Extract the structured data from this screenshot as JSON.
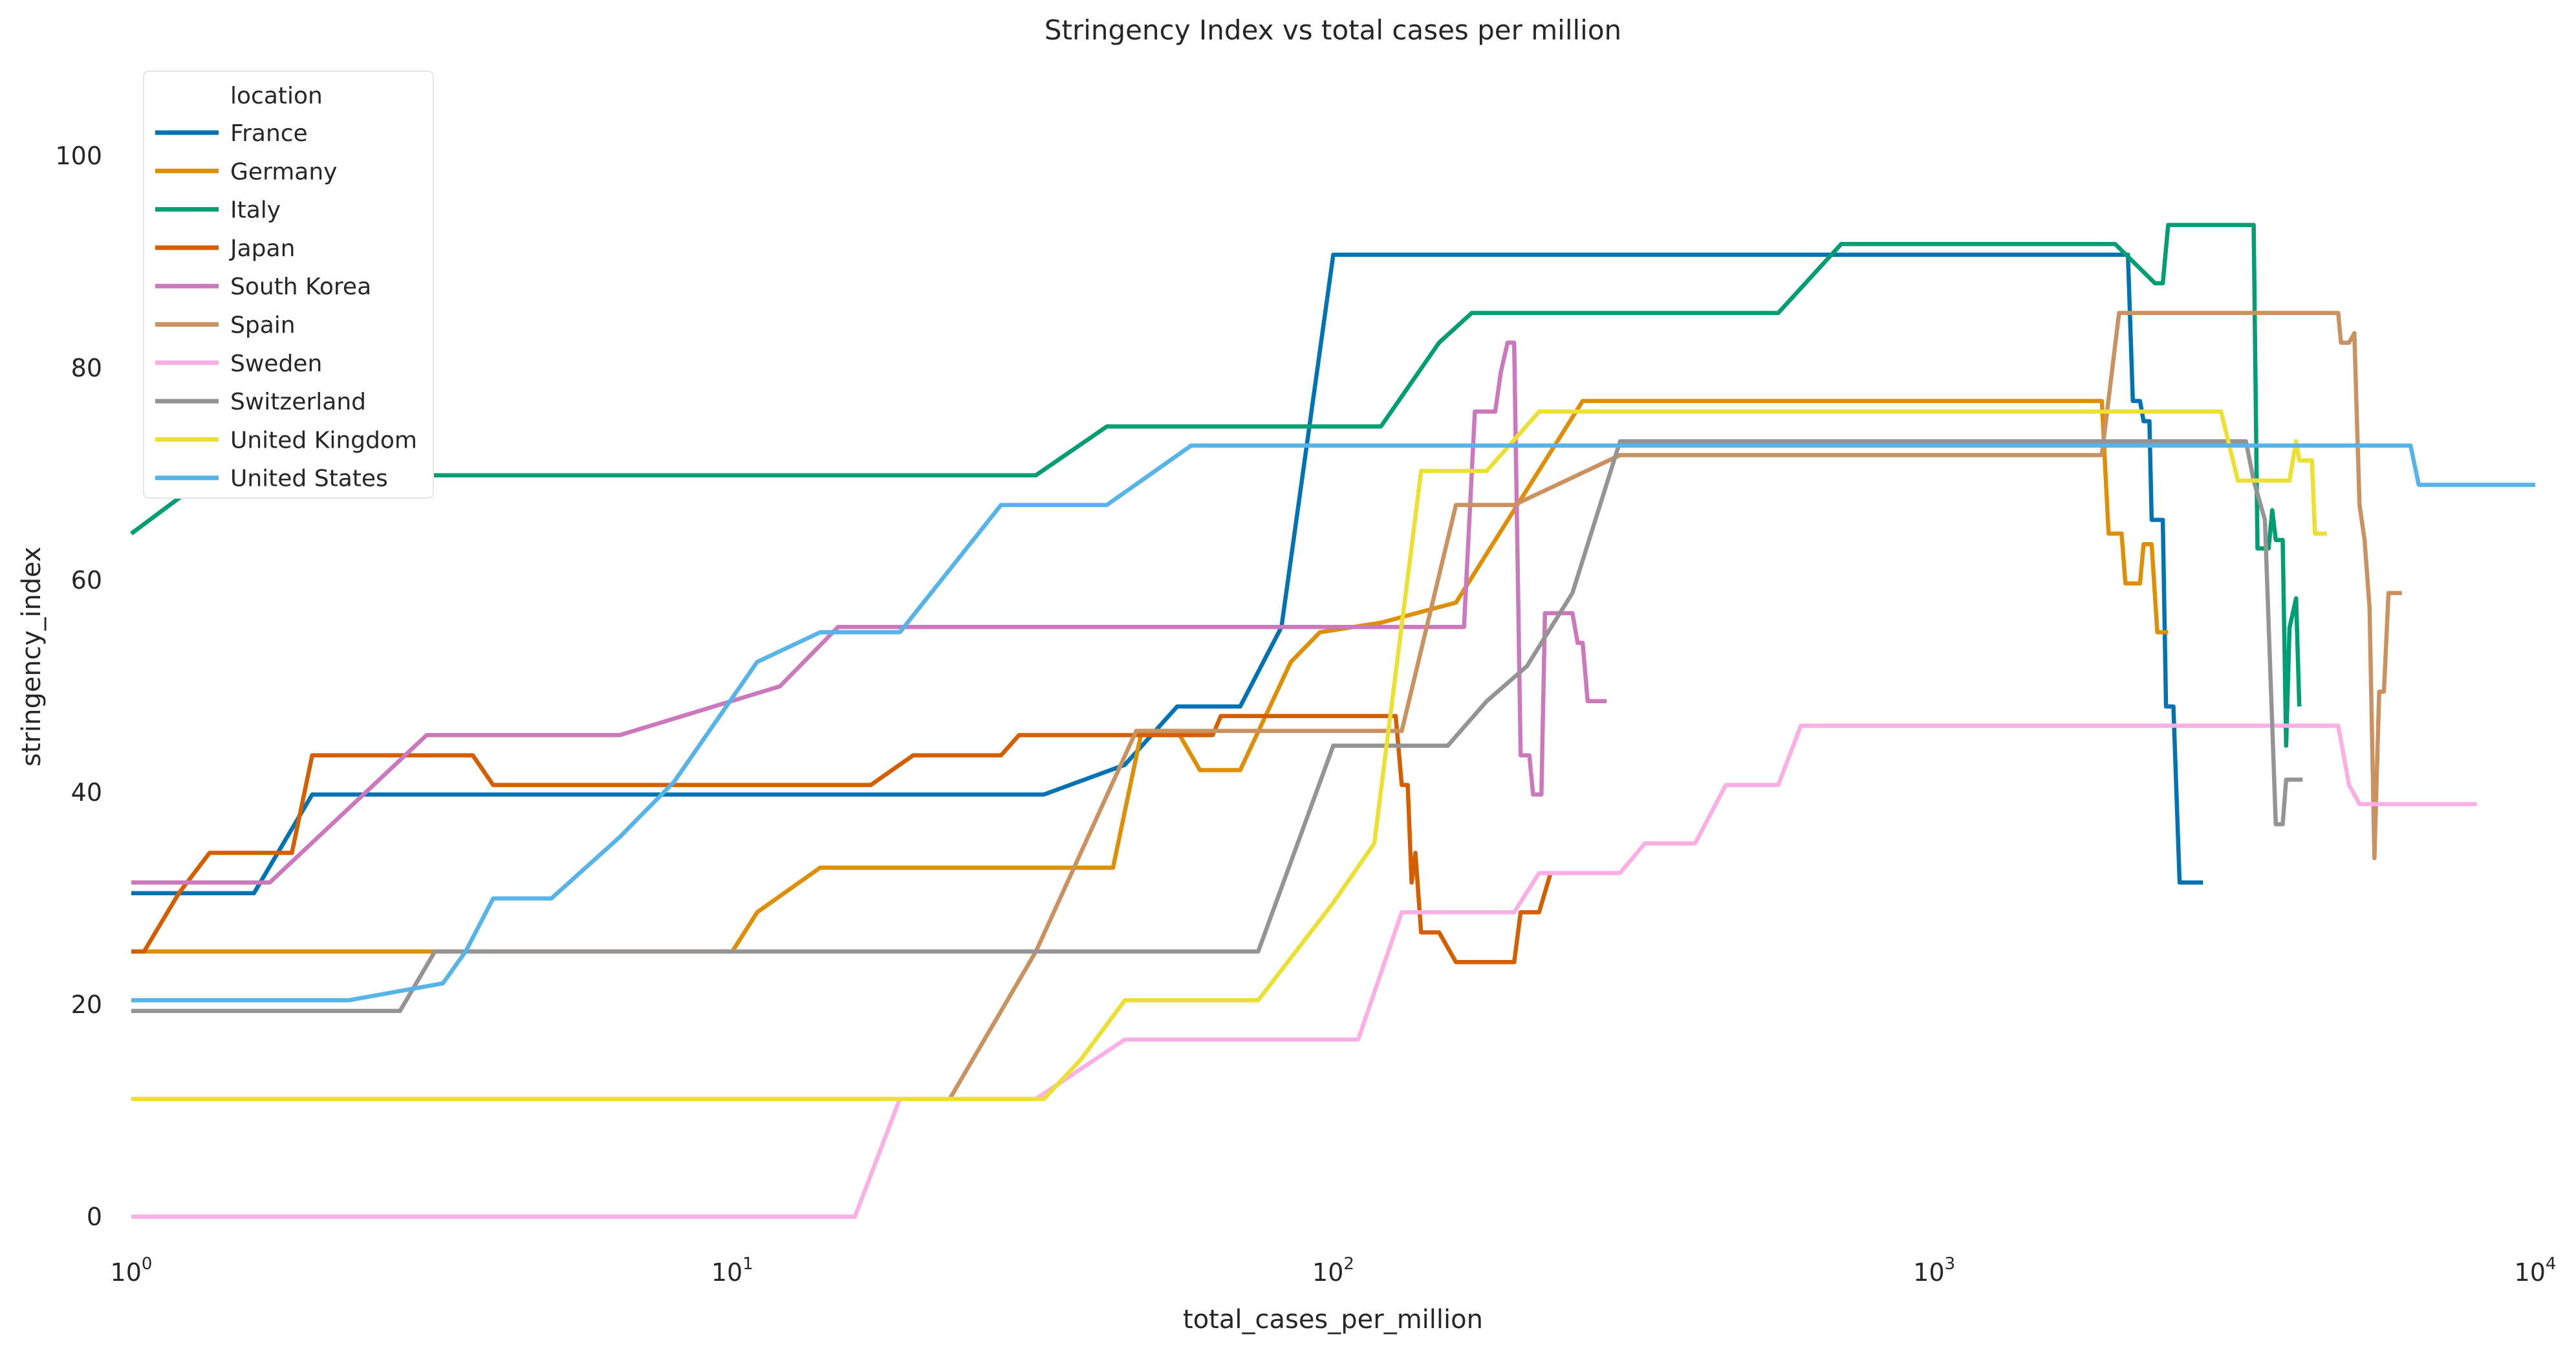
{
  "chart_data": {
    "type": "line",
    "title": "Stringency Index vs total cases per million",
    "xlabel": "total_cases_per_million",
    "ylabel": "stringency_index",
    "xscale": "log",
    "xlim": [
      1,
      10000
    ],
    "ylim": [
      -3,
      108
    ],
    "x_ticks": [
      {
        "value": 1,
        "base": "10",
        "exp": "0"
      },
      {
        "value": 10,
        "base": "10",
        "exp": "1"
      },
      {
        "value": 100,
        "base": "10",
        "exp": "2"
      },
      {
        "value": 1000,
        "base": "10",
        "exp": "3"
      },
      {
        "value": 10000,
        "base": "10",
        "exp": "4"
      }
    ],
    "y_ticks": [
      0,
      20,
      40,
      60,
      80,
      100
    ],
    "grid": false,
    "legend": {
      "title": "location",
      "position": "top-left"
    },
    "series": [
      {
        "name": "France",
        "color": "#0173b2",
        "points": [
          [
            1,
            30.5
          ],
          [
            1.6,
            30.5
          ],
          [
            2,
            39.8
          ],
          [
            33,
            39.8
          ],
          [
            45,
            42.6
          ],
          [
            55,
            48.1
          ],
          [
            70,
            48.1
          ],
          [
            82,
            55.6
          ],
          [
            100,
            90.7
          ],
          [
            2100,
            90.7
          ],
          [
            2140,
            76.9
          ],
          [
            2200,
            76.9
          ],
          [
            2230,
            75
          ],
          [
            2280,
            75
          ],
          [
            2300,
            65.7
          ],
          [
            2400,
            65.7
          ],
          [
            2430,
            48.1
          ],
          [
            2500,
            48.1
          ],
          [
            2560,
            31.5
          ],
          [
            2800,
            31.5
          ]
        ]
      },
      {
        "name": "Germany",
        "color": "#de8f05",
        "points": [
          [
            1,
            25
          ],
          [
            10,
            25
          ],
          [
            11,
            28.7
          ],
          [
            14,
            32.9
          ],
          [
            43,
            32.9
          ],
          [
            48,
            45.8
          ],
          [
            55,
            45.8
          ],
          [
            60,
            42.1
          ],
          [
            70,
            42.1
          ],
          [
            85,
            52.3
          ],
          [
            95,
            55.1
          ],
          [
            120,
            56
          ],
          [
            160,
            57.9
          ],
          [
            260,
            76.9
          ],
          [
            1900,
            76.9
          ],
          [
            1950,
            64.4
          ],
          [
            2050,
            64.4
          ],
          [
            2080,
            59.7
          ],
          [
            2200,
            59.7
          ],
          [
            2230,
            63.4
          ],
          [
            2300,
            63.4
          ],
          [
            2350,
            55.1
          ],
          [
            2450,
            55.1
          ]
        ]
      },
      {
        "name": "Italy",
        "color": "#029e73",
        "points": [
          [
            1,
            64.4
          ],
          [
            1.35,
            69.9
          ],
          [
            32,
            69.9
          ],
          [
            42,
            74.5
          ],
          [
            120,
            74.5
          ],
          [
            150,
            82.4
          ],
          [
            170,
            85.2
          ],
          [
            550,
            85.2
          ],
          [
            700,
            91.7
          ],
          [
            2000,
            91.7
          ],
          [
            2330,
            88
          ],
          [
            2400,
            88
          ],
          [
            2450,
            93.5
          ],
          [
            3400,
            93.5
          ],
          [
            3450,
            63
          ],
          [
            3600,
            63
          ],
          [
            3650,
            66.6
          ],
          [
            3700,
            63.8
          ],
          [
            3800,
            63.8
          ],
          [
            3850,
            44.4
          ],
          [
            3900,
            55.5
          ],
          [
            4000,
            58.3
          ],
          [
            4050,
            48.1
          ]
        ]
      },
      {
        "name": "Japan",
        "color": "#d55e00",
        "points": [
          [
            1,
            25
          ],
          [
            1.05,
            25
          ],
          [
            1.2,
            30.5
          ],
          [
            1.35,
            34.3
          ],
          [
            1.85,
            34.3
          ],
          [
            2,
            43.5
          ],
          [
            3.7,
            43.5
          ],
          [
            4,
            40.7
          ],
          [
            17,
            40.7
          ],
          [
            20,
            43.5
          ],
          [
            28,
            43.5
          ],
          [
            30,
            45.4
          ],
          [
            63,
            45.4
          ],
          [
            65,
            47.2
          ],
          [
            127,
            47.2
          ],
          [
            130,
            40.7
          ],
          [
            133,
            40.7
          ],
          [
            135,
            31.5
          ],
          [
            137,
            34.3
          ],
          [
            140,
            26.8
          ],
          [
            150,
            26.8
          ],
          [
            160,
            24
          ],
          [
            200,
            24
          ],
          [
            205,
            28.7
          ],
          [
            220,
            28.7
          ],
          [
            230,
            32.4
          ]
        ]
      },
      {
        "name": "South Korea",
        "color": "#cc78bc",
        "points": [
          [
            1,
            31.5
          ],
          [
            1.7,
            31.5
          ],
          [
            3.1,
            45.4
          ],
          [
            6.5,
            45.4
          ],
          [
            12,
            50
          ],
          [
            15,
            55.6
          ],
          [
            165,
            55.6
          ],
          [
            172,
            75.9
          ],
          [
            186,
            75.9
          ],
          [
            190,
            79.6
          ],
          [
            195,
            82.4
          ],
          [
            200,
            82.4
          ],
          [
            205,
            43.5
          ],
          [
            212,
            43.5
          ],
          [
            215,
            39.8
          ],
          [
            222,
            39.8
          ],
          [
            225,
            56.9
          ],
          [
            250,
            56.9
          ],
          [
            255,
            54.1
          ],
          [
            260,
            54.1
          ],
          [
            265,
            48.6
          ],
          [
            285,
            48.6
          ]
        ]
      },
      {
        "name": "Spain",
        "color": "#ca9161",
        "points": [
          [
            1,
            11.1
          ],
          [
            23,
            11.1
          ],
          [
            32,
            25
          ],
          [
            47,
            45.8
          ],
          [
            130,
            45.8
          ],
          [
            160,
            67.1
          ],
          [
            200,
            67.1
          ],
          [
            300,
            71.8
          ],
          [
            1900,
            71.8
          ],
          [
            2030,
            85.2
          ],
          [
            4700,
            85.2
          ],
          [
            4750,
            82.4
          ],
          [
            4900,
            82.4
          ],
          [
            5000,
            83.3
          ],
          [
            5050,
            75
          ],
          [
            5100,
            67.1
          ],
          [
            5200,
            63.8
          ],
          [
            5300,
            57.4
          ],
          [
            5400,
            33.8
          ],
          [
            5500,
            49.5
          ],
          [
            5600,
            49.5
          ],
          [
            5700,
            58.8
          ],
          [
            6000,
            58.8
          ]
        ]
      },
      {
        "name": "Sweden",
        "color": "#fbafe4",
        "points": [
          [
            1,
            0
          ],
          [
            16,
            0
          ],
          [
            19,
            11.1
          ],
          [
            32,
            11.1
          ],
          [
            45,
            16.7
          ],
          [
            110,
            16.7
          ],
          [
            130,
            28.7
          ],
          [
            200,
            28.7
          ],
          [
            220,
            32.4
          ],
          [
            300,
            32.4
          ],
          [
            330,
            35.2
          ],
          [
            400,
            35.2
          ],
          [
            450,
            40.7
          ],
          [
            550,
            40.7
          ],
          [
            600,
            46.3
          ],
          [
            4700,
            46.3
          ],
          [
            4900,
            40.7
          ],
          [
            5100,
            38.9
          ],
          [
            8000,
            38.9
          ]
        ]
      },
      {
        "name": "Switzerland",
        "color": "#949494",
        "points": [
          [
            1,
            19.4
          ],
          [
            2.8,
            19.4
          ],
          [
            3.2,
            25
          ],
          [
            75,
            25
          ],
          [
            100,
            44.4
          ],
          [
            155,
            44.4
          ],
          [
            180,
            48.6
          ],
          [
            210,
            51.9
          ],
          [
            250,
            58.8
          ],
          [
            300,
            73.1
          ],
          [
            3300,
            73.1
          ],
          [
            3400,
            69.4
          ],
          [
            3550,
            65.7
          ],
          [
            3700,
            37
          ],
          [
            3800,
            37
          ],
          [
            3850,
            41.2
          ],
          [
            4100,
            41.2
          ]
        ]
      },
      {
        "name": "United Kingdom",
        "color": "#ece133",
        "points": [
          [
            1,
            11.1
          ],
          [
            33,
            11.1
          ],
          [
            38,
            14.8
          ],
          [
            45,
            20.4
          ],
          [
            75,
            20.4
          ],
          [
            100,
            29.6
          ],
          [
            117,
            35.2
          ],
          [
            140,
            70.3
          ],
          [
            180,
            70.3
          ],
          [
            220,
            75.9
          ],
          [
            3000,
            75.9
          ],
          [
            3200,
            69.4
          ],
          [
            3900,
            69.4
          ],
          [
            4000,
            73.1
          ],
          [
            4050,
            71.3
          ],
          [
            4250,
            71.3
          ],
          [
            4300,
            64.4
          ],
          [
            4500,
            64.4
          ]
        ]
      },
      {
        "name": "United States",
        "color": "#56b4e9",
        "points": [
          [
            1,
            20.4
          ],
          [
            2.3,
            20.4
          ],
          [
            3.3,
            22
          ],
          [
            3.6,
            25
          ],
          [
            4,
            30
          ],
          [
            5,
            30
          ],
          [
            6.5,
            35.8
          ],
          [
            8,
            41
          ],
          [
            11,
            52.3
          ],
          [
            14,
            55.1
          ],
          [
            19,
            55.1
          ],
          [
            28,
            67.1
          ],
          [
            42,
            67.1
          ],
          [
            58,
            72.7
          ],
          [
            6200,
            72.7
          ],
          [
            6400,
            69
          ],
          [
            10000,
            69
          ]
        ]
      }
    ]
  }
}
